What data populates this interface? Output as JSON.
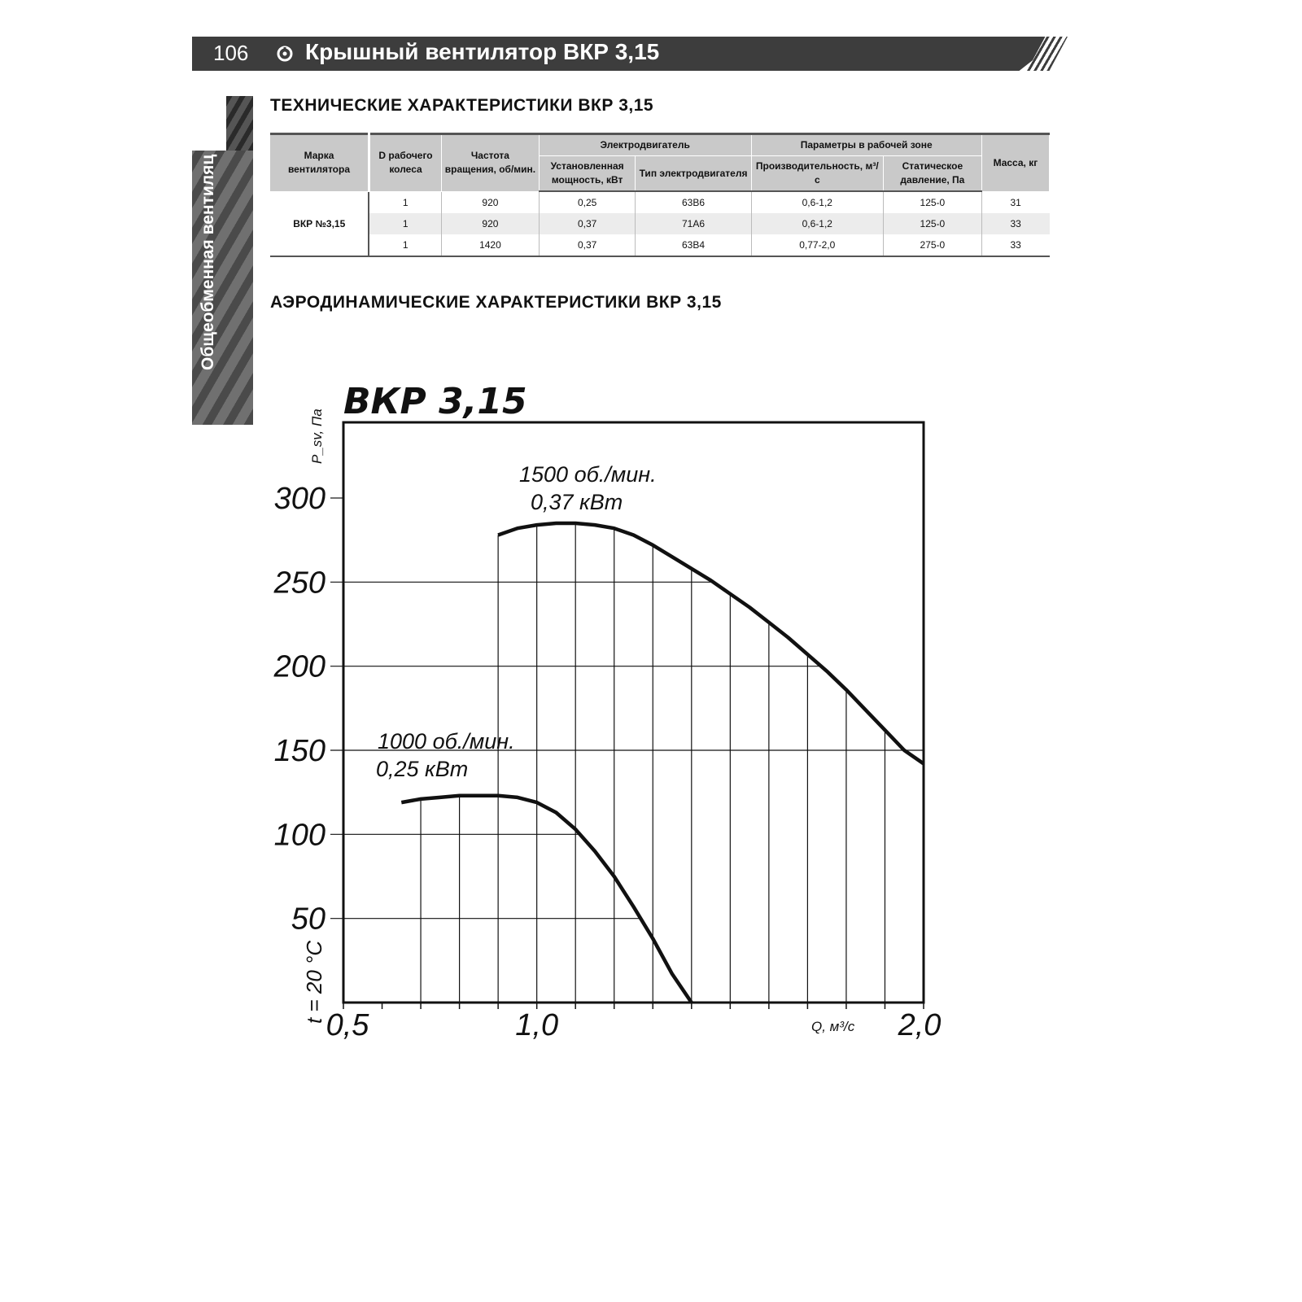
{
  "header": {
    "page_number": "106",
    "title": "Крышный вентилятор ВКР 3,15",
    "side_tab": "Общеобменная вентиляц"
  },
  "sections": {
    "tech_title": "ТЕХНИЧЕСКИЕ ХАРАКТЕРИСТИКИ ВКР 3,15",
    "aero_title": "АЭРОДИНАМИЧЕСКИЕ ХАРАКТЕРИСТИКИ ВКР 3,15"
  },
  "table": {
    "headers": {
      "model": "Марка вентилятора",
      "wheel": "D рабочего колеса",
      "speed": "Частота вращения, об/мин.",
      "motor_group": "Электродвигатель",
      "power": "Установленная мощность, кВт",
      "motor_type": "Тип электродвигателя",
      "params_group": "Параметры в рабочей зоне",
      "capacity": "Производительность, м³/с",
      "pressure": "Статическое давление, Па",
      "mass": "Масса, кг"
    },
    "model": "ВКР №3,15",
    "rows": [
      [
        "1",
        "920",
        "0,25",
        "63В6",
        "0,6-1,2",
        "125-0",
        "31"
      ],
      [
        "1",
        "920",
        "0,37",
        "71А6",
        "0,6-1,2",
        "125-0",
        "33"
      ],
      [
        "1",
        "1420",
        "0,37",
        "63В4",
        "0,77-2,0",
        "275-0",
        "33"
      ]
    ]
  },
  "chart_data": {
    "type": "line",
    "title": "ВКР 3,15",
    "ylabel": "P_sv, Па",
    "xlabel": "Q, м³/с",
    "ylim": [
      0,
      345
    ],
    "xlim": [
      0.5,
      2.0
    ],
    "y_ticks": [
      "300",
      "250",
      "200",
      "150",
      "100",
      "50"
    ],
    "y_tick_values": [
      300,
      250,
      200,
      150,
      100,
      50
    ],
    "x_ticks": [
      "0,5",
      "1,0",
      "2,0"
    ],
    "x_tick_values": [
      0.5,
      1.0,
      2.0
    ],
    "grid": true,
    "annotation_temp": "t = 20 °C",
    "series": [
      {
        "name": "1500 об./мин.",
        "power": "0,37 кВт",
        "x": [
          0.9,
          0.95,
          1.0,
          1.05,
          1.1,
          1.15,
          1.2,
          1.25,
          1.3,
          1.35,
          1.4,
          1.45,
          1.5,
          1.55,
          1.6,
          1.65,
          1.7,
          1.75,
          1.8,
          1.85,
          1.9,
          1.95,
          2.0
        ],
        "y": [
          278,
          282,
          284,
          285,
          285,
          284,
          282,
          278,
          272,
          265,
          258,
          251,
          243,
          235,
          226,
          217,
          207,
          197,
          186,
          174,
          162,
          150,
          142
        ]
      },
      {
        "name": "1000 об./мин.",
        "power": "0,25 кВт",
        "x": [
          0.65,
          0.7,
          0.75,
          0.8,
          0.85,
          0.9,
          0.95,
          1.0,
          1.05,
          1.1,
          1.15,
          1.2,
          1.25,
          1.3,
          1.35,
          1.4
        ],
        "y": [
          119,
          121,
          122,
          123,
          123,
          123,
          122,
          119,
          113,
          103,
          90,
          75,
          57,
          38,
          17,
          0
        ]
      }
    ]
  }
}
